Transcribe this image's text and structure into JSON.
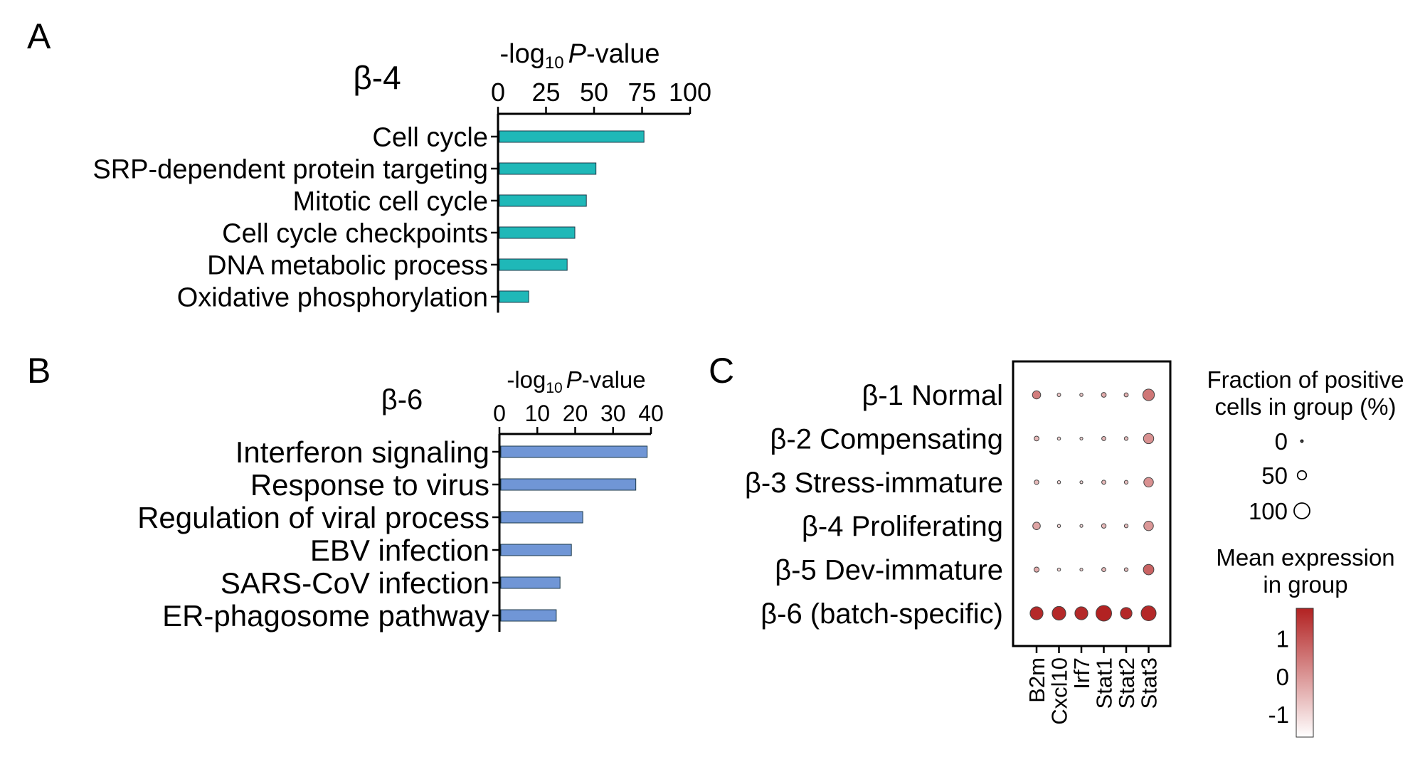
{
  "panels": {
    "a": {
      "letter": "A",
      "group_label": "β-4",
      "group_color": "#1fb8b8"
    },
    "b": {
      "letter": "B",
      "group_label": "β-6",
      "group_color": "#6b8fcf"
    },
    "c": {
      "letter": "C"
    }
  },
  "axis": {
    "prefix": "-log",
    "subscript": "10",
    "italic": "P",
    "suffix": "-value"
  },
  "colors": {
    "teal": "#1fb8b8",
    "blue": "#7096d6"
  },
  "chart_data": [
    {
      "type": "bar",
      "orientation": "horizontal",
      "categories": [
        "Cell cycle",
        "SRP-dependent protein targeting",
        "Mitotic cell cycle",
        "Cell cycle checkpoints",
        "DNA metabolic process",
        "Oxidative phosphorylation"
      ],
      "values": [
        76,
        51,
        46,
        40,
        36,
        16
      ],
      "xlim": [
        0,
        100
      ],
      "ticks": [
        "0",
        "25",
        "50",
        "75",
        "100"
      ]
    },
    {
      "type": "bar",
      "orientation": "horizontal",
      "categories": [
        "Interferon signaling",
        "Response to virus",
        "Regulation of viral process",
        "EBV infection",
        "SARS-CoV infection",
        "ER-phagosome pathway"
      ],
      "values": [
        39,
        36,
        22,
        19,
        16,
        15
      ],
      "xlim": [
        0,
        40
      ],
      "ticks": [
        "0",
        "10",
        "20",
        "30",
        "40"
      ]
    },
    {
      "type": "scatter",
      "subtype": "dotplot",
      "rows": [
        {
          "label": "β-1 Normal",
          "color": "#5cb85c"
        },
        {
          "label": "β-2 Compensating",
          "color": "#e8736a"
        },
        {
          "label": "β-3 Stress-immature",
          "color": "#a07cc0"
        },
        {
          "label": "β-4 Proliferating",
          "color": "#1fb8b8"
        },
        {
          "label": "β-5 Dev-immature",
          "color": "#d99030"
        },
        {
          "label": "β-6 (batch-specific)",
          "color": "#6b8fcf"
        }
      ],
      "genes": [
        "B2m",
        "Cxcl10",
        "Irf7",
        "Stat1",
        "Stat2",
        "Stat3"
      ],
      "fraction": [
        [
          45,
          10,
          8,
          20,
          15,
          70
        ],
        [
          20,
          8,
          6,
          15,
          12,
          60
        ],
        [
          18,
          8,
          6,
          15,
          12,
          55
        ],
        [
          40,
          8,
          6,
          18,
          12,
          55
        ],
        [
          22,
          8,
          6,
          15,
          12,
          62
        ],
        [
          80,
          85,
          80,
          100,
          70,
          95
        ]
      ],
      "expression": [
        [
          0.4,
          -0.7,
          -0.7,
          -0.3,
          -0.4,
          0.5
        ],
        [
          -0.5,
          -0.9,
          -0.9,
          -0.5,
          -0.6,
          0.1
        ],
        [
          -0.5,
          -0.9,
          -0.9,
          -0.5,
          -0.6,
          0.1
        ],
        [
          -0.2,
          -0.9,
          -0.9,
          -0.5,
          -0.6,
          0.0
        ],
        [
          -0.3,
          -0.9,
          -0.9,
          -0.5,
          -0.6,
          0.8
        ],
        [
          1.7,
          1.7,
          1.7,
          1.8,
          1.7,
          1.7
        ]
      ],
      "size_legend": {
        "title_line1": "Fraction of positive",
        "title_line2": "cells in group (%)",
        "values": [
          0,
          50,
          100
        ],
        "labels": [
          "0",
          "50",
          "100"
        ]
      },
      "color_legend": {
        "title_line1": "Mean expression",
        "title_line2": "in group",
        "ticks": [
          "1",
          "0",
          "-1"
        ],
        "tick_values": [
          1,
          0,
          -1
        ],
        "range": [
          -1.6,
          1.8
        ]
      }
    }
  ]
}
